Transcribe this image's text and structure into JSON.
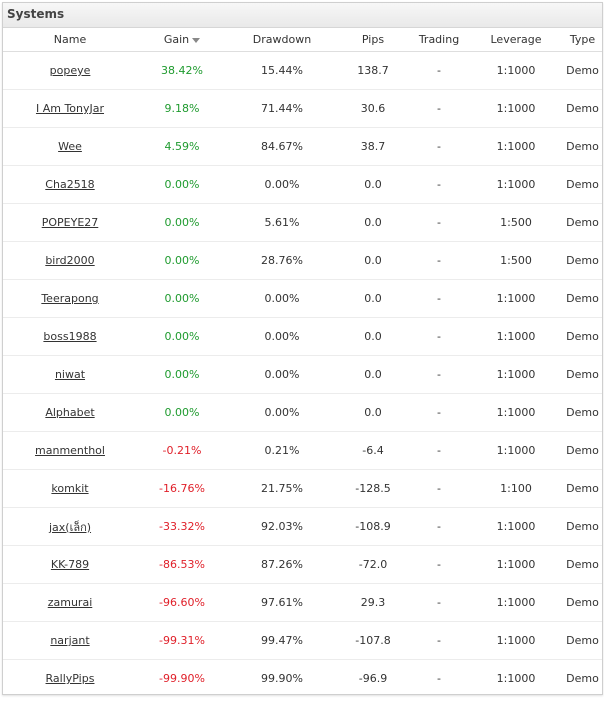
{
  "panel": {
    "title": "Systems"
  },
  "columns": {
    "name": "Name",
    "gain": "Gain",
    "drawdown": "Drawdown",
    "pips": "Pips",
    "trading": "Trading",
    "leverage": "Leverage",
    "type": "Type"
  },
  "sort": {
    "column": "gain",
    "direction": "desc",
    "icon": "sort-down-icon"
  },
  "colors": {
    "positive": "#1f9b2f",
    "negative": "#e0202a"
  },
  "rows": [
    {
      "name": "popeye",
      "gain": "38.42%",
      "drawdown": "15.44%",
      "pips": "138.7",
      "trading": "-",
      "leverage": "1:1000",
      "type": "Demo"
    },
    {
      "name": "I Am TonyJar",
      "gain": "9.18%",
      "drawdown": "71.44%",
      "pips": "30.6",
      "trading": "-",
      "leverage": "1:1000",
      "type": "Demo"
    },
    {
      "name": "Wee",
      "gain": "4.59%",
      "drawdown": "84.67%",
      "pips": "38.7",
      "trading": "-",
      "leverage": "1:1000",
      "type": "Demo"
    },
    {
      "name": "Cha2518",
      "gain": "0.00%",
      "drawdown": "0.00%",
      "pips": "0.0",
      "trading": "-",
      "leverage": "1:1000",
      "type": "Demo"
    },
    {
      "name": "POPEYE27",
      "gain": "0.00%",
      "drawdown": "5.61%",
      "pips": "0.0",
      "trading": "-",
      "leverage": "1:500",
      "type": "Demo"
    },
    {
      "name": "bird2000",
      "gain": "0.00%",
      "drawdown": "28.76%",
      "pips": "0.0",
      "trading": "-",
      "leverage": "1:500",
      "type": "Demo"
    },
    {
      "name": "Teerapong",
      "gain": "0.00%",
      "drawdown": "0.00%",
      "pips": "0.0",
      "trading": "-",
      "leverage": "1:1000",
      "type": "Demo"
    },
    {
      "name": "boss1988",
      "gain": "0.00%",
      "drawdown": "0.00%",
      "pips": "0.0",
      "trading": "-",
      "leverage": "1:1000",
      "type": "Demo"
    },
    {
      "name": "niwat",
      "gain": "0.00%",
      "drawdown": "0.00%",
      "pips": "0.0",
      "trading": "-",
      "leverage": "1:1000",
      "type": "Demo"
    },
    {
      "name": "Alphabet",
      "gain": "0.00%",
      "drawdown": "0.00%",
      "pips": "0.0",
      "trading": "-",
      "leverage": "1:1000",
      "type": "Demo"
    },
    {
      "name": "manmenthol",
      "gain": "-0.21%",
      "drawdown": "0.21%",
      "pips": "-6.4",
      "trading": "-",
      "leverage": "1:1000",
      "type": "Demo"
    },
    {
      "name": "komkit",
      "gain": "-16.76%",
      "drawdown": "21.75%",
      "pips": "-128.5",
      "trading": "-",
      "leverage": "1:100",
      "type": "Demo"
    },
    {
      "name": "jax(เล็ก)",
      "gain": "-33.32%",
      "drawdown": "92.03%",
      "pips": "-108.9",
      "trading": "-",
      "leverage": "1:1000",
      "type": "Demo"
    },
    {
      "name": "KK-789",
      "gain": "-86.53%",
      "drawdown": "87.26%",
      "pips": "-72.0",
      "trading": "-",
      "leverage": "1:1000",
      "type": "Demo"
    },
    {
      "name": "zamurai",
      "gain": "-96.60%",
      "drawdown": "97.61%",
      "pips": "29.3",
      "trading": "-",
      "leverage": "1:1000",
      "type": "Demo"
    },
    {
      "name": "narjant",
      "gain": "-99.31%",
      "drawdown": "99.47%",
      "pips": "-107.8",
      "trading": "-",
      "leverage": "1:1000",
      "type": "Demo"
    },
    {
      "name": "RallyPips",
      "gain": "-99.90%",
      "drawdown": "99.90%",
      "pips": "-96.9",
      "trading": "-",
      "leverage": "1:1000",
      "type": "Demo"
    }
  ]
}
